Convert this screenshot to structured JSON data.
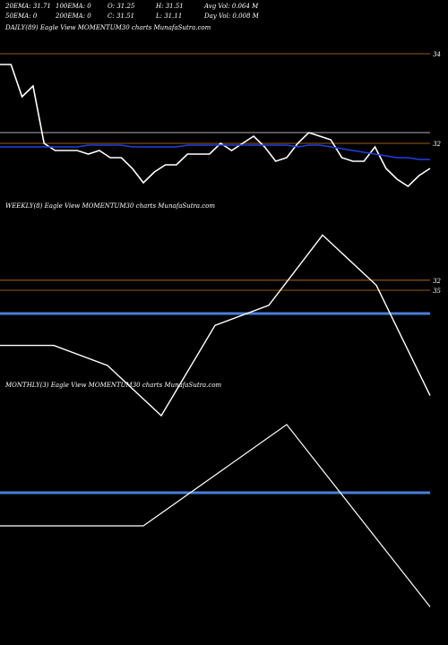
{
  "header": {
    "row1": [
      {
        "text": "20EMA: 31.71"
      },
      {
        "text": "100EMA: 0"
      },
      {
        "text": "O: 31.25"
      },
      {
        "text": "H: 31.51"
      },
      {
        "text": "Avg Vol: 0.064  M"
      }
    ],
    "row2": [
      {
        "text": "50EMA: 0"
      },
      {
        "text": "200EMA: 0"
      },
      {
        "text": "C: 31.51"
      },
      {
        "text": "L: 31.11"
      },
      {
        "text": "Day Vol: 0.008  M"
      }
    ]
  },
  "colors": {
    "background": "#000000",
    "price": "#ffffff",
    "ema": "#2040e0",
    "level_line": "#c87820",
    "gray_line": "#b0b0b0",
    "blue_band": "#4a7fd8"
  },
  "chart_data": [
    {
      "type": "line",
      "title": "DAILY(89) Eagle  View  MOMENTUM30  charts MunafaSutra.com",
      "series": [
        {
          "values": [
            34.2,
            34.2,
            33.3,
            33.6,
            32.0,
            31.8,
            31.8,
            31.8,
            31.7,
            31.8,
            31.6,
            31.6,
            31.3,
            30.9,
            31.2,
            31.4,
            31.4,
            31.7,
            31.7,
            31.7,
            32.0,
            31.8,
            32.0,
            32.2,
            31.9,
            31.5,
            31.6,
            32.0,
            32.3,
            32.2,
            32.1,
            31.6,
            31.5,
            31.5,
            31.9,
            31.3,
            31.0,
            30.8,
            31.1,
            31.3
          ]
        },
        {
          "values": [
            31.9,
            31.9,
            31.9,
            31.9,
            31.9,
            31.9,
            31.9,
            31.9,
            31.95,
            31.95,
            31.95,
            31.95,
            31.9,
            31.9,
            31.9,
            31.9,
            31.9,
            31.95,
            31.95,
            31.95,
            31.95,
            31.95,
            31.95,
            31.95,
            31.95,
            31.95,
            31.95,
            31.9,
            31.95,
            31.95,
            31.9,
            31.85,
            31.8,
            31.75,
            31.7,
            31.65,
            31.6,
            31.6,
            31.55,
            31.55
          ]
        }
      ],
      "levels": [
        {
          "value": 34.5,
          "label": "34"
        },
        {
          "value": 32.3
        },
        {
          "value": 32.0,
          "label": "32"
        }
      ],
      "ylim": [
        30.5,
        35.0
      ]
    },
    {
      "type": "line",
      "title": "WEEKLY(8) Eagle  View  MOMENTUM30  charts MunafaSutra.com",
      "series": [
        {
          "values": [
            31.2,
            31.2,
            31.0,
            30.5,
            31.4,
            31.6,
            32.3,
            31.8,
            30.7
          ]
        }
      ],
      "levels": [
        {
          "value": 31.85,
          "label": "32"
        },
        {
          "value": 31.75,
          "label": "35"
        }
      ],
      "ylim": [
        30.0,
        32.5
      ]
    },
    {
      "type": "line",
      "title": "MONTHLY(3) Eagle  View  MOMENTUM30  charts MunafaSutra.com",
      "series": [
        {
          "values": [
            31.5,
            31.5,
            32.5,
            30.7
          ]
        }
      ],
      "ylim": [
        30.5,
        32.8
      ]
    }
  ]
}
